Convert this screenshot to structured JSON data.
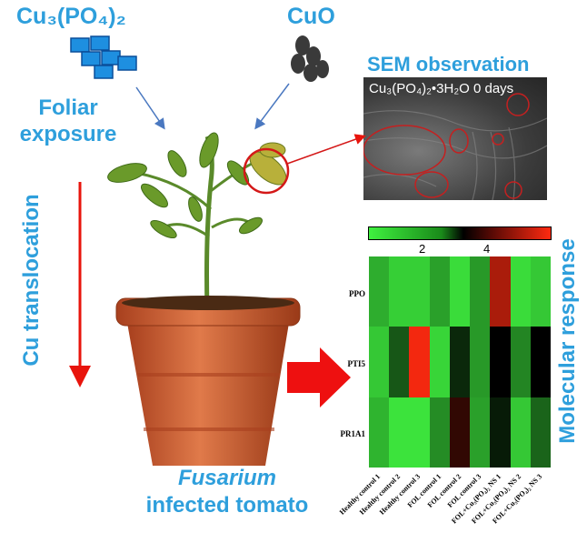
{
  "labels": {
    "cu3po42": "Cu₃(PO₄)₂",
    "cuo": "CuO",
    "foliar": "Foliar exposure",
    "translocation": "Cu translocation",
    "sem_title": "SEM observation",
    "sem_label": "Cu₃(PO₄)₂•3H₂O  0 days",
    "fusarium": "Fusarium",
    "infected": "infected tomato",
    "molecular": "Molecular response"
  },
  "colors": {
    "accent_blue": "#2e9fdc",
    "arrow_red": "#e8140c",
    "low": "#3ff03f",
    "mid": "#000000",
    "high": "#ff2a10"
  },
  "heatmap": {
    "colorbar_ticks": [
      "2",
      "4"
    ],
    "range": [
      0.3,
      6
    ],
    "rows": [
      "PPO",
      "PTI5",
      "PR1A1"
    ],
    "columns": [
      "Healthy control 1",
      "Healthy control 2",
      "Healthy control 3",
      "FOL control 1",
      "FOL control 2",
      "FOL control 3",
      "FOL+Cu₃(PO₄)₂ NS 1",
      "FOL+Cu₃(PO₄)₂ NS 2",
      "FOL+Cu₃(PO₄)₂ NS 3"
    ],
    "values": [
      [
        1.3,
        0.8,
        0.8,
        1.5,
        0.6,
        1.6,
        5.3,
        0.6,
        0.9
      ],
      [
        0.9,
        2.6,
        5.9,
        0.7,
        3.3,
        1.6,
        3.9,
        1.9,
        3.9
      ],
      [
        1.2,
        0.5,
        0.5,
        1.8,
        4.3,
        1.5,
        3.5,
        0.9,
        2.4
      ]
    ]
  }
}
